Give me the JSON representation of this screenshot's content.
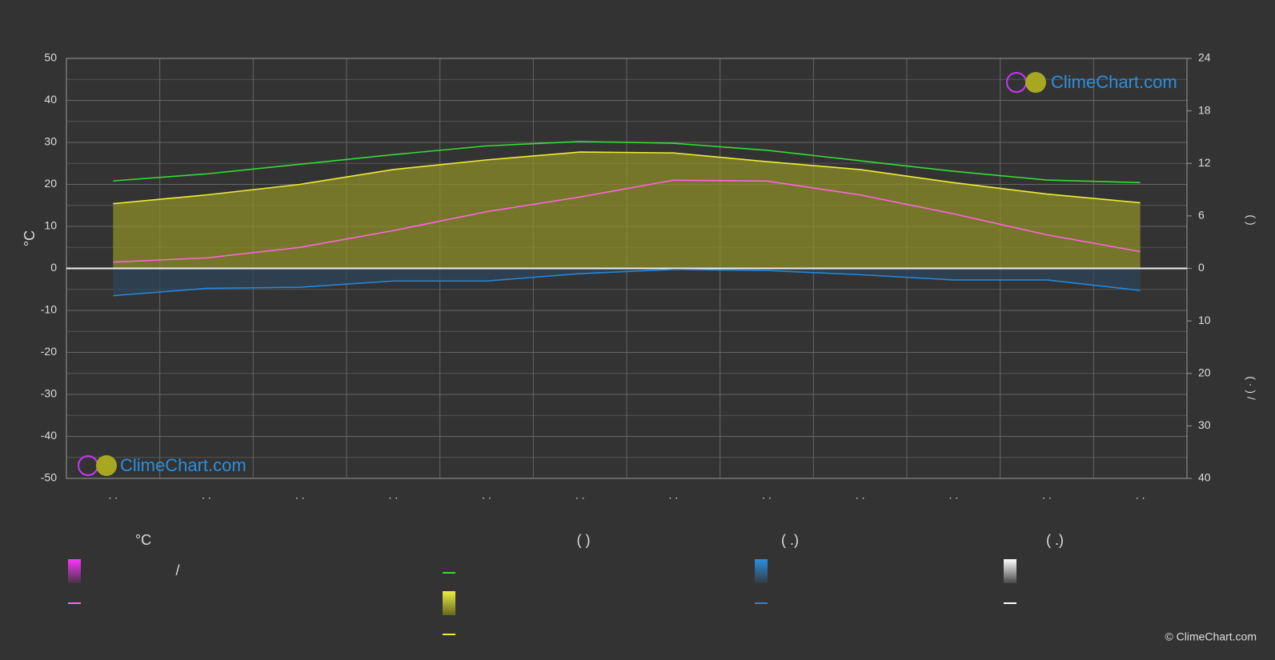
{
  "chart_data": {
    "type": "line",
    "ylabel": "°C",
    "y2label": "(  )",
    "y3label": "( · )   /",
    "categories": [
      ". .",
      ". .",
      ". .",
      ". .",
      ". .",
      ". .",
      ". .",
      ". .",
      ". .",
      ". .",
      ". .",
      ". ."
    ],
    "ylim": [
      -50,
      50
    ],
    "yticks": [
      50,
      40,
      30,
      20,
      10,
      0,
      -10,
      -20,
      -30,
      -40,
      -50
    ],
    "y2lim": [
      0,
      24
    ],
    "y2ticks": [
      24,
      18,
      12,
      6,
      0
    ],
    "y3lim": [
      0,
      40
    ],
    "y3ticks": [
      10,
      20,
      30,
      40
    ],
    "grid": true,
    "series": [
      {
        "color": "#33dd33",
        "axis": "y2",
        "values": [
          10.0,
          10.8,
          11.9,
          13.0,
          14.0,
          14.5,
          14.3,
          13.5,
          12.3,
          11.1,
          10.1,
          9.8
        ]
      },
      {
        "color": "#eeee33",
        "axis": "y2",
        "fill": "#8d8d2a",
        "values": [
          7.4,
          8.4,
          9.6,
          11.3,
          12.4,
          13.3,
          13.2,
          12.2,
          11.3,
          9.8,
          8.5,
          7.5
        ]
      },
      {
        "color": "#ff66dd",
        "values": [
          1.5,
          2.5,
          5.0,
          9.0,
          13.5,
          17.0,
          21.0,
          20.8,
          17.5,
          13.0,
          8.0,
          4.0
        ]
      },
      {
        "color": "#2288dd",
        "axis": "y3",
        "fill": "#2d4459",
        "values": [
          5.2,
          3.8,
          3.6,
          2.4,
          2.4,
          1.0,
          0.2,
          0.4,
          1.2,
          2.2,
          2.2,
          4.2
        ]
      }
    ],
    "legend": [
      {
        "title": "°C",
        "items": [
          "/"
        ]
      },
      {
        "title": "(          )"
      },
      {
        "title": "(   .)"
      },
      {
        "title": "(   .)"
      }
    ],
    "watermark": "ClimeChart.com",
    "copyright": "© ClimeChart.com"
  }
}
